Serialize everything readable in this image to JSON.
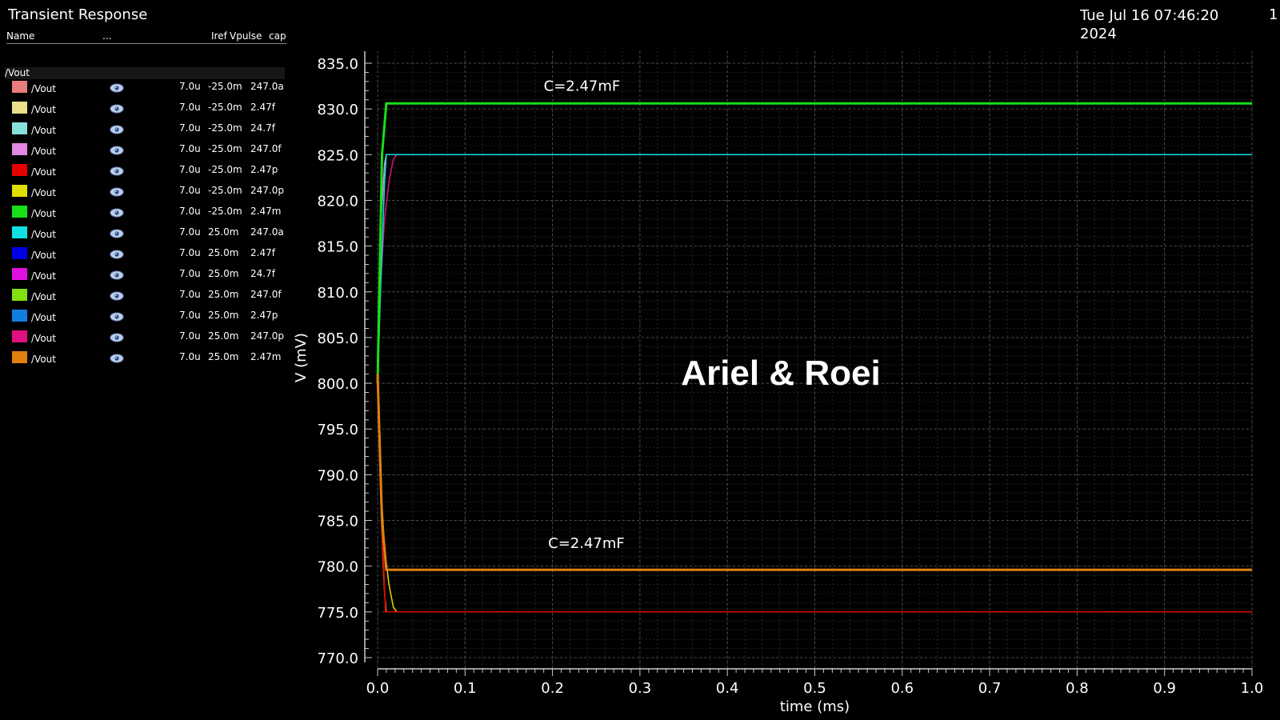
{
  "header": {
    "title": "Transient Response",
    "date": "Tue Jul 16 07:46:20 2024",
    "page": "1"
  },
  "legend": {
    "col_name": "Name",
    "col_more": "...",
    "col_iref": "Iref",
    "col_vpulse": "Vpulse",
    "col_cap": "cap",
    "group": "/Vout",
    "items": [
      {
        "name": "/Vout",
        "color": "#e87d7d",
        "iref": "7.0u",
        "vpulse": "-25.0m",
        "cap": "247.0a"
      },
      {
        "name": "/Vout",
        "color": "#e8e08a",
        "iref": "7.0u",
        "vpulse": "-25.0m",
        "cap": "2.47f"
      },
      {
        "name": "/Vout",
        "color": "#88e0dc",
        "iref": "7.0u",
        "vpulse": "-25.0m",
        "cap": "24.7f"
      },
      {
        "name": "/Vout",
        "color": "#e288e0",
        "iref": "7.0u",
        "vpulse": "-25.0m",
        "cap": "247.0f"
      },
      {
        "name": "/Vout",
        "color": "#e60000",
        "iref": "7.0u",
        "vpulse": "-25.0m",
        "cap": "2.47p"
      },
      {
        "name": "/Vout",
        "color": "#e0e000",
        "iref": "7.0u",
        "vpulse": "-25.0m",
        "cap": "247.0p"
      },
      {
        "name": "/Vout",
        "color": "#18e018",
        "iref": "7.0u",
        "vpulse": "-25.0m",
        "cap": "2.47m"
      },
      {
        "name": "/Vout",
        "color": "#10e0e0",
        "iref": "7.0u",
        "vpulse": "25.0m",
        "cap": "247.0a"
      },
      {
        "name": "/Vout",
        "color": "#0000e6",
        "iref": "7.0u",
        "vpulse": "25.0m",
        "cap": "2.47f"
      },
      {
        "name": "/Vout",
        "color": "#e010e0",
        "iref": "7.0u",
        "vpulse": "25.0m",
        "cap": "24.7f"
      },
      {
        "name": "/Vout",
        "color": "#80e010",
        "iref": "7.0u",
        "vpulse": "25.0m",
        "cap": "247.0f"
      },
      {
        "name": "/Vout",
        "color": "#1080e0",
        "iref": "7.0u",
        "vpulse": "25.0m",
        "cap": "2.47p"
      },
      {
        "name": "/Vout",
        "color": "#e01080",
        "iref": "7.0u",
        "vpulse": "25.0m",
        "cap": "247.0p"
      },
      {
        "name": "/Vout",
        "color": "#e08010",
        "iref": "7.0u",
        "vpulse": "25.0m",
        "cap": "2.47m"
      }
    ]
  },
  "chart_data": {
    "type": "line",
    "title": "Transient Response",
    "xlabel": "time (ms)",
    "ylabel": "V (mV)",
    "xlim": [
      0.0,
      1.0
    ],
    "ylim": [
      770.0,
      835.0
    ],
    "x_ticks": [
      "0.0",
      "0.1",
      "0.2",
      "0.3",
      "0.4",
      "0.5",
      "0.6",
      "0.7",
      "0.8",
      "0.9",
      "1.0"
    ],
    "y_ticks": [
      "770.0",
      "775.0",
      "780.0",
      "785.0",
      "790.0",
      "795.0",
      "800.0",
      "805.0",
      "810.0",
      "815.0",
      "820.0",
      "825.0",
      "830.0",
      "835.0"
    ],
    "grid": true,
    "annotations": [
      {
        "text": "C=2.47mF",
        "x": 0.19,
        "y": 832.5
      },
      {
        "text": "C=2.47mF",
        "x": 0.195,
        "y": 782.5
      }
    ],
    "watermark": "Ariel & Roei",
    "series": [
      {
        "name": "Vpulse=25.0m, cap=247.0p",
        "color": "#e01080",
        "x": [
          0,
          0.003,
          0.008,
          0.013,
          0.018,
          0.022,
          0.03,
          1.0
        ],
        "y": [
          800,
          810,
          818,
          822,
          824.5,
          825,
          825,
          825
        ]
      },
      {
        "name": "Vpulse=-25.0m, cap=247.0p",
        "color": "#e0e000",
        "x": [
          0,
          0.003,
          0.008,
          0.013,
          0.018,
          0.022,
          0.03,
          1.0
        ],
        "y": [
          800,
          790,
          782,
          778,
          775.5,
          775,
          775,
          775
        ]
      },
      {
        "name": "Vpulse=-25.0m, cap=247.0f",
        "color": "#e288e0",
        "x": [
          0,
          0.002,
          0.004,
          0.008,
          0.01,
          1.0
        ],
        "y": [
          800,
          810,
          818,
          824,
          825,
          825
        ]
      },
      {
        "name": "Vpulse=25.0m, cap=247.0f",
        "color": "#e08010",
        "x": [
          0,
          0.002,
          0.004,
          0.006,
          0.008,
          0.01,
          1.0
        ],
        "y": [
          800,
          793,
          786,
          781,
          777,
          775,
          775
        ]
      },
      {
        "name": "Vpulse=-25.0m, cap=2.47p",
        "color": "#e60000",
        "x": [
          0,
          0.002,
          0.004,
          0.007,
          0.009,
          1.0
        ],
        "y": [
          800,
          793,
          786,
          780,
          775,
          775
        ]
      },
      {
        "name": "Vpulse=25.0m, cap=247.0a",
        "color": "#10e0e0",
        "x": [
          0,
          0.004,
          0.008,
          0.01,
          1.0
        ],
        "y": [
          800,
          812,
          822,
          825,
          825
        ]
      },
      {
        "name": "Vpulse=-25.0m, cap=2.47m",
        "color": "#18e018",
        "x": [
          0,
          0.005,
          0.01,
          1.0
        ],
        "y": [
          800,
          825,
          830.6,
          830.6
        ]
      },
      {
        "name": "Vpulse=25.0m, cap=2.47m",
        "color": "#e08010",
        "x": [
          0,
          0.005,
          0.01,
          1.0
        ],
        "y": [
          801,
          785,
          779.6,
          779.6
        ]
      }
    ]
  }
}
